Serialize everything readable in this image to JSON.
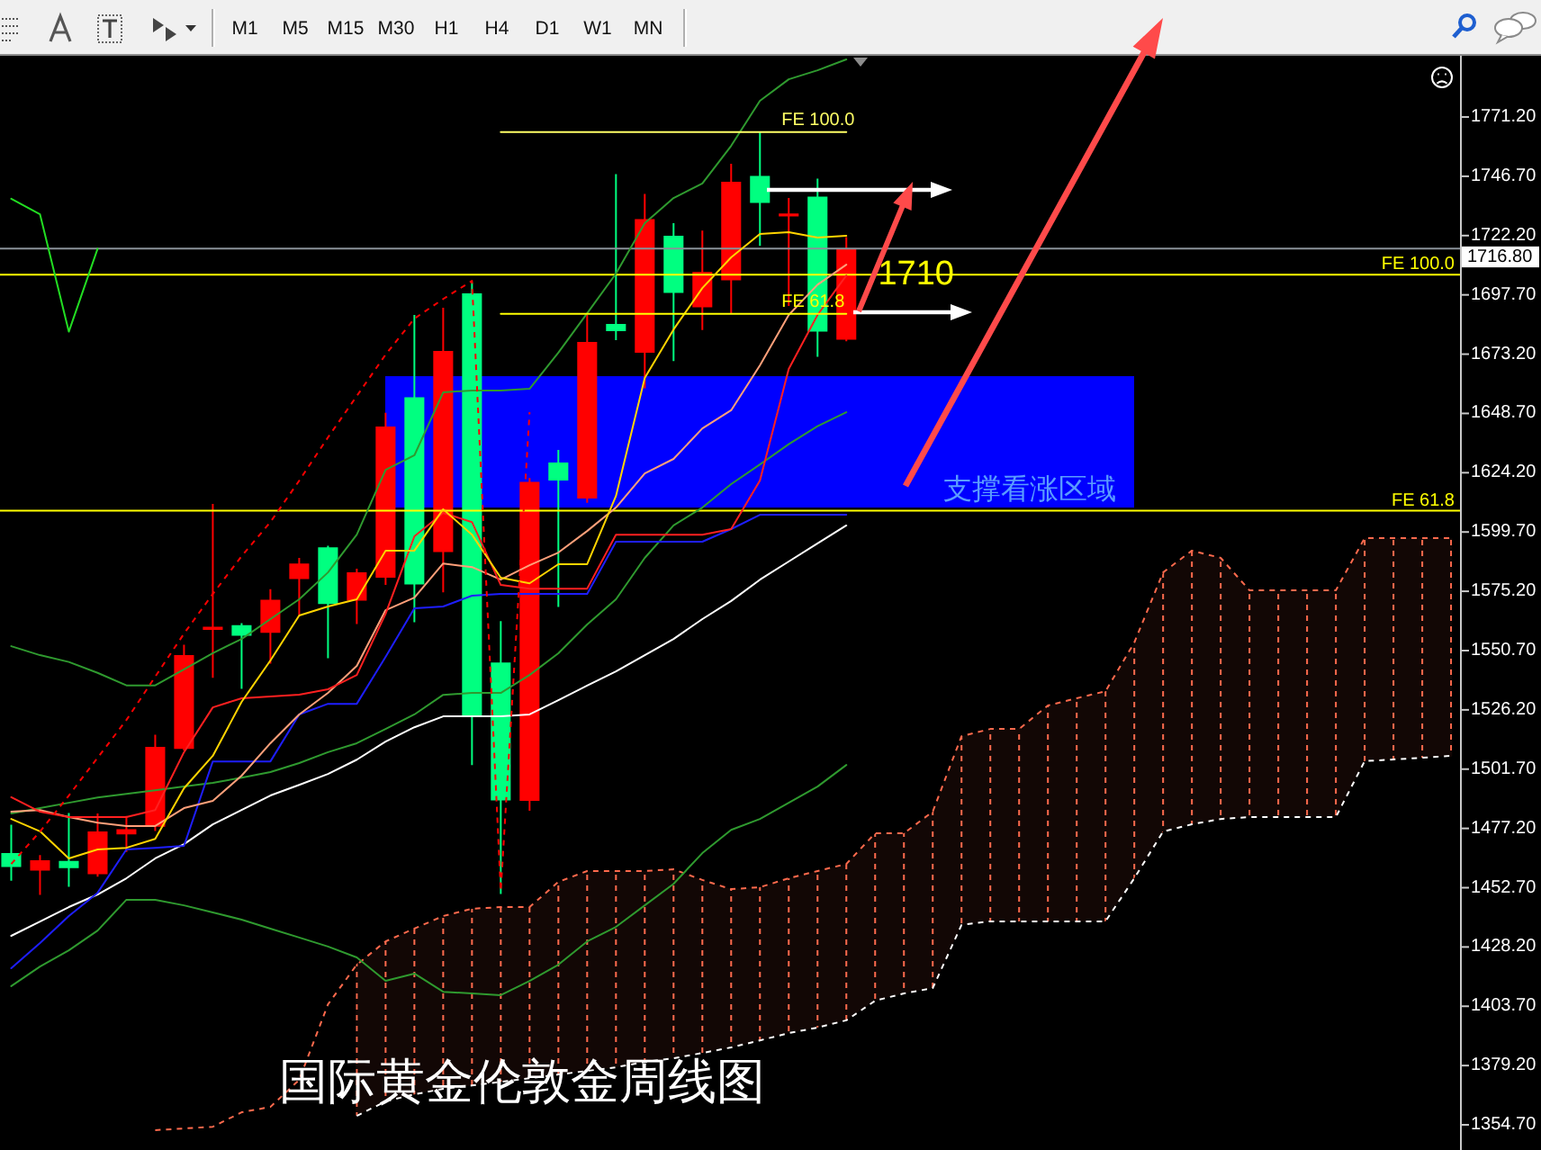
{
  "chart_data": {
    "type": "candlestick",
    "title": "国际黄金伦敦金周线图",
    "categories": [
      null,
      null,
      null,
      null,
      null,
      null,
      null,
      null,
      null,
      null,
      null,
      null,
      null,
      null,
      null,
      null,
      null,
      null,
      null,
      null,
      null,
      null,
      null,
      null,
      null,
      null,
      null,
      null,
      null,
      null,
      null,
      null,
      null,
      null,
      null,
      null,
      null,
      null,
      null,
      null,
      null,
      null,
      null,
      null,
      null,
      null,
      null,
      null,
      null,
      null,
      null
    ],
    "ohlc": [
      [
        1467.0,
        1478.7,
        1455.6,
        1461.3
      ],
      [
        1459.8,
        1466.2,
        1449.7,
        1464.0
      ],
      [
        1463.8,
        1483.6,
        1453.1,
        1460.8
      ],
      [
        1458.3,
        1483.4,
        1457.3,
        1475.9
      ],
      [
        1474.7,
        1482.4,
        1467.5,
        1476.9
      ],
      [
        1477.9,
        1515.9,
        1476.1,
        1510.9
      ],
      [
        1510.1,
        1553.1,
        1509.4,
        1548.8
      ],
      [
        1559.2,
        1611.3,
        1539.4,
        1560.5
      ],
      [
        1561.2,
        1562.0,
        1534.9,
        1556.8
      ],
      [
        1558.0,
        1576.1,
        1545.3,
        1571.7
      ],
      [
        1580.3,
        1589.0,
        1565.4,
        1586.7
      ],
      [
        1593.4,
        1594.0,
        1547.5,
        1569.9
      ],
      [
        1571.3,
        1584.5,
        1561.7,
        1583.0
      ],
      [
        1580.8,
        1649.0,
        1577.8,
        1643.3
      ],
      [
        1655.4,
        1689.4,
        1562.4,
        1578.0
      ],
      [
        1591.4,
        1692.4,
        1574.8,
        1674.5
      ],
      [
        1698.3,
        1702.8,
        1503.4,
        1523.3
      ],
      [
        1545.8,
        1562.9,
        1450.1,
        1488.8
      ],
      [
        1488.6,
        1622.0,
        1484.5,
        1620.4
      ],
      [
        1628.4,
        1633.6,
        1568.7,
        1621.0
      ],
      [
        1613.5,
        1689.4,
        1611.8,
        1678.2
      ],
      [
        1685.7,
        1747.6,
        1679.0,
        1682.7
      ],
      [
        1673.8,
        1739.4,
        1659.1,
        1729.0
      ],
      [
        1722.1,
        1727.3,
        1670.3,
        1698.5
      ],
      [
        1692.6,
        1724.3,
        1683.2,
        1707.2
      ],
      [
        1703.7,
        1751.9,
        1690.1,
        1744.4
      ],
      [
        1746.9,
        1765.0,
        1717.9,
        1735.7
      ],
      [
        1730.5,
        1737.7,
        1693.1,
        1731.0
      ],
      [
        1738.3,
        1745.7,
        1672.1,
        1682.5
      ],
      [
        1679.2,
        1721.6,
        1678.5,
        1716.8
      ],
      null,
      null,
      null,
      null,
      null,
      null,
      null,
      null,
      null,
      null,
      null,
      null,
      null,
      null,
      null,
      null,
      null,
      null,
      null,
      null,
      null
    ],
    "colors": [
      "#00ff80",
      "#ff0000",
      "#00ff80",
      "#ff0000",
      "#ff0000",
      "#ff0000",
      "#ff0000",
      "#ff0000",
      "#00ff80",
      "#ff0000",
      "#ff0000",
      "#00ff80",
      "#ff0000",
      "#ff0000",
      "#00ff80",
      "#ff0000",
      "#00ff80",
      "#00ff80",
      "#ff0000",
      "#00ff80",
      "#ff0000",
      "#00ff80",
      "#ff0000",
      "#00ff80",
      "#ff0000",
      "#ff0000",
      "#00ff80",
      "#ff0000",
      "#00ff80",
      "#ff0000",
      null,
      null,
      null,
      null,
      null,
      null,
      null,
      null,
      null,
      null,
      null,
      null,
      null,
      null,
      null,
      null,
      null,
      null,
      null,
      null,
      null
    ],
    "series": [
      {
        "type": "line",
        "color": "#ff6a4d",
        "line_style": "dashed",
        "values": [
          null,
          null,
          null,
          null,
          null,
          1352.5,
          1353.2,
          1353.9,
          1359.9,
          1362.1,
          1373.3,
          1404.5,
          1420.9,
          1430.5,
          1435.8,
          1441.0,
          1444.0,
          1444.7,
          1444.7,
          1455.1,
          1459.6,
          1459.6,
          1459.6,
          1460.3,
          1455.9,
          1452.1,
          1452.9,
          1456.6,
          1459.6,
          1462.5,
          1475.2,
          1475.2,
          1484.1,
          1515.3,
          1518.3,
          1518.3,
          1528.0,
          1531.0,
          1533.9,
          1554.0,
          1583.0,
          1592.0,
          1589.0,
          1575.6,
          1575.6,
          1575.6,
          1575.6,
          1597.2,
          1597.2,
          1597.2,
          1597.2
        ],
        "upper": [
          null,
          null,
          null,
          null,
          null,
          null,
          null,
          null,
          null,
          null,
          null,
          null,
          1420.9,
          1430.5,
          1435.8,
          1441.0,
          1444.0,
          1444.7,
          1444.7,
          1455.1,
          1459.6,
          1459.6,
          1459.6,
          1460.3,
          1455.9,
          1452.1,
          1452.9,
          1456.6,
          1459.6,
          1462.5,
          1475.2,
          1475.2,
          1484.1,
          1515.3,
          1518.3,
          1518.3,
          1528.0,
          1531.0,
          1533.9,
          1554.0,
          1583.0,
          1592.0,
          1589.0,
          1575.6,
          1575.6,
          1575.6,
          1575.6,
          1597.2,
          1597.2,
          1597.2,
          1597.2
        ],
        "lower": [
          null,
          null,
          null,
          null,
          null,
          null,
          null,
          null,
          null,
          null,
          null,
          null,
          1358.4,
          1364.4,
          1367.3,
          1369.6,
          1371.0,
          1372.5,
          1374.0,
          1375.5,
          1377.0,
          1378.5,
          1380.7,
          1382.2,
          1384.4,
          1386.7,
          1389.6,
          1392.6,
          1394.9,
          1397.9,
          1406.0,
          1409.0,
          1411.2,
          1437.3,
          1438.8,
          1438.8,
          1438.8,
          1438.8,
          1438.8,
          1456.6,
          1475.9,
          1478.9,
          1481.1,
          1481.9,
          1481.9,
          1481.9,
          1481.9,
          1505.0,
          1505.7,
          1506.4,
          1507.2
        ]
      },
      {
        "type": "line",
        "color": "#ffffff",
        "line_style": "dashed",
        "values": [
          null,
          null,
          null,
          null,
          null,
          null,
          null,
          null,
          null,
          null,
          null,
          null,
          1358.4,
          1364.4,
          1367.3,
          1369.6,
          1371.0,
          1372.5,
          1374.0,
          1375.5,
          1377.0,
          1378.5,
          1380.7,
          1382.2,
          1384.4,
          1386.7,
          1389.6,
          1392.6,
          1394.9,
          1397.9,
          1406.0,
          1409.0,
          1411.2,
          1437.3,
          1438.8,
          1438.8,
          1438.8,
          1438.8,
          1438.8,
          1456.6,
          1475.9,
          1478.9,
          1481.1,
          1481.9,
          1481.9,
          1481.9,
          1481.9,
          1505.0,
          1505.7,
          1506.4,
          1507.2
        ]
      },
      {
        "type": "line",
        "color": "#2f9a2f",
        "values": [
          1552.5,
          1548.8,
          1546.0,
          1541.5,
          1536.3,
          1536.3,
          1542.9,
          1549.6,
          1555.5,
          1563.7,
          1571.9,
          1583.0,
          1598.6,
          1625.4,
          1631.4,
          1657.4,
          1658.2,
          1658.2,
          1658.9,
          1673.8,
          1690.1,
          1706.5,
          1727.3,
          1737.7,
          1743.7,
          1759.3,
          1777.9,
          1786.8,
          1790.5,
          1795.0,
          null,
          null,
          null,
          null,
          null,
          null,
          null,
          null,
          null,
          null,
          null,
          null,
          null,
          null,
          null,
          null,
          null,
          null,
          null,
          null,
          null
        ]
      },
      {
        "type": "line",
        "color": "#2f9a2f",
        "values": [
          1483.4,
          1485.6,
          1487.8,
          1490.0,
          1491.5,
          1493.0,
          1494.5,
          1496.0,
          1498.2,
          1500.5,
          1504.2,
          1508.7,
          1512.4,
          1518.3,
          1524.3,
          1532.4,
          1533.2,
          1533.2,
          1540.6,
          1549.6,
          1561.5,
          1571.9,
          1589.0,
          1602.4,
          1609.8,
          1619.5,
          1627.6,
          1636.0,
          1643.4,
          1649.2,
          null,
          null,
          null,
          null,
          null,
          null,
          null,
          null,
          null,
          null,
          null,
          null,
          null,
          null,
          null,
          null,
          null,
          null,
          null,
          null,
          null
        ]
      },
      {
        "type": "line",
        "color": "#2f9a2f",
        "values": [
          1412.0,
          1420.1,
          1426.8,
          1435.0,
          1447.7,
          1447.7,
          1445.4,
          1442.5,
          1439.5,
          1435.8,
          1432.1,
          1428.4,
          1423.9,
          1414.2,
          1417.2,
          1409.7,
          1409.0,
          1408.3,
          1414.2,
          1420.9,
          1430.5,
          1436.5,
          1445.4,
          1454.3,
          1467.0,
          1476.6,
          1481.1,
          1487.8,
          1494.5,
          1503.4,
          null,
          null,
          null,
          null,
          null,
          null,
          null,
          null,
          null,
          null,
          null,
          null,
          null,
          null,
          null,
          null,
          null,
          null,
          null,
          null,
          null
        ]
      },
      {
        "type": "line",
        "color": "#ffffff",
        "values": [
          1432.8,
          1438.7,
          1444.7,
          1449.9,
          1456.6,
          1464.8,
          1470.7,
          1478.9,
          1484.8,
          1490.8,
          1495.2,
          1499.7,
          1505.6,
          1513.1,
          1519.0,
          1523.5,
          1523.5,
          1523.5,
          1524.3,
          1530.2,
          1536.2,
          1542.1,
          1548.8,
          1555.5,
          1563.7,
          1571.2,
          1580.0,
          1587.5,
          1595.0,
          1602.4,
          null,
          null,
          null,
          null,
          null,
          null,
          null,
          null,
          null,
          null,
          null,
          null,
          null,
          null,
          null,
          null,
          null,
          null,
          null,
          null,
          null
        ]
      },
      {
        "type": "line",
        "color": "#1e1eff",
        "values": [
          1419.4,
          1429.8,
          1441.0,
          1450.6,
          1468.5,
          1469.2,
          1470.0,
          1504.9,
          1504.9,
          1504.9,
          1524.3,
          1528.7,
          1528.7,
          1548.1,
          1568.2,
          1568.9,
          1573.4,
          1574.1,
          1574.1,
          1574.1,
          1574.1,
          1595.7,
          1595.7,
          1595.7,
          1595.7,
          1600.9,
          1606.8,
          1606.8,
          1606.8,
          1606.8,
          null,
          null,
          null,
          null,
          null,
          null,
          null,
          null,
          null,
          null,
          null,
          null,
          null,
          null,
          null,
          null,
          null,
          null,
          null,
          null,
          null
        ]
      },
      {
        "type": "line",
        "color": "#ffa07a",
        "values": [
          1484.1,
          1484.8,
          1481.9,
          1479.6,
          1478.2,
          1478.2,
          1485.6,
          1488.6,
          1499.0,
          1512.4,
          1524.3,
          1533.2,
          1544.4,
          1567.4,
          1572.6,
          1586.7,
          1585.2,
          1580.0,
          1586.0,
          1591.2,
          1600.1,
          1609.8,
          1623.9,
          1629.9,
          1642.5,
          1650.0,
          1668.6,
          1689.4,
          1701.9,
          1710.2,
          null,
          null,
          null,
          null,
          null,
          null,
          null,
          null,
          null,
          null,
          null,
          null,
          null,
          null,
          null,
          null,
          null,
          null,
          null,
          null,
          null
        ]
      },
      {
        "type": "line",
        "color": "#ff2020",
        "values": [
          1490.1,
          1484.1,
          1481.9,
          1481.9,
          1481.9,
          1484.8,
          1508.7,
          1527.2,
          1531.0,
          1531.7,
          1532.5,
          1534.7,
          1540.6,
          1565.9,
          1597.9,
          1607.6,
          1603.8,
          1577.8,
          1576.3,
          1576.3,
          1576.3,
          1598.6,
          1598.6,
          1598.6,
          1598.6,
          1600.9,
          1621.0,
          1667.1,
          1689.4,
          1705.7,
          null,
          null,
          null,
          null,
          null,
          null,
          null,
          null,
          null,
          null,
          null,
          null,
          null,
          null,
          null,
          null,
          null,
          null,
          null,
          null,
          null
        ]
      },
      {
        "type": "line",
        "color": "#ffd400",
        "values": [
          1481.1,
          1476.0,
          1464.8,
          1468.5,
          1469.2,
          1472.9,
          1493.8,
          1507.2,
          1529.5,
          1546.6,
          1565.2,
          1568.9,
          1571.9,
          1592.0,
          1592.0,
          1609.1,
          1598.6,
          1580.8,
          1578.5,
          1586.4,
          1586.4,
          1614.6,
          1663.4,
          1683.4,
          1700.5,
          1713.2,
          1722.9,
          1723.6,
          1721.4,
          1722.1,
          null,
          null,
          null,
          null,
          null,
          null,
          null,
          null,
          null,
          null,
          null,
          null,
          null,
          null,
          null,
          null,
          null,
          null,
          null,
          null,
          null
        ]
      },
      {
        "type": "line",
        "color": "#ff0000",
        "line_style": "dashed",
        "values": [
          1462.5,
          1475.9,
          1490.8,
          1506.4,
          1522.0,
          1539.9,
          1557.7,
          1574.1,
          1589.7,
          1603.8,
          1620.9,
          1638.8,
          1655.9,
          1673.0,
          1687.9,
          1696.0,
          1703.5,
          1451.4,
          1649.2,
          null,
          null,
          null,
          null,
          null,
          null,
          null,
          null,
          null,
          null,
          null,
          null,
          null,
          null,
          null,
          null,
          null,
          null,
          null,
          null,
          null,
          null,
          null,
          null,
          null,
          null,
          null,
          null,
          null,
          null,
          null,
          null
        ]
      },
      {
        "type": "line",
        "color": "#22dd22",
        "values": [
          1737.4,
          1731.0,
          1682.5,
          1716.8,
          null,
          null,
          null,
          null,
          null,
          null,
          null,
          null,
          null,
          null,
          null,
          null,
          null,
          null,
          null,
          null,
          null,
          null,
          null,
          null,
          null,
          null,
          null,
          null,
          null,
          null,
          null,
          null,
          null,
          null,
          null,
          null,
          null,
          null,
          null,
          null,
          null,
          null,
          null,
          null,
          null,
          null,
          null,
          null,
          null,
          null,
          null
        ]
      },
      {
        "type": "line",
        "name": "FE 100.0",
        "color": "#ffff66",
        "values": [
          null,
          null,
          null,
          null,
          null,
          null,
          null,
          null,
          null,
          null,
          null,
          null,
          null,
          null,
          null,
          null,
          null,
          1765.0,
          1765.0,
          1765.0,
          1765.0,
          1765.0,
          1765.0,
          1765.0,
          1765.0,
          1765.0,
          1765.0,
          1765.0,
          1765.0,
          1765.0,
          null,
          null,
          null,
          null,
          null,
          null,
          null,
          null,
          null,
          null,
          null,
          null,
          null,
          null,
          null,
          null,
          null,
          null,
          null,
          null,
          null
        ]
      },
      {
        "type": "line",
        "name": "FE 61.8",
        "color": "#ffff00",
        "values": [
          null,
          null,
          null,
          null,
          null,
          null,
          null,
          null,
          null,
          null,
          null,
          null,
          null,
          null,
          null,
          null,
          null,
          1689.9,
          1689.9,
          1689.9,
          1689.9,
          1689.9,
          1689.9,
          1689.9,
          1689.9,
          1689.9,
          1689.9,
          1689.9,
          1689.9,
          1689.9,
          null,
          null,
          null,
          null,
          null,
          null,
          null,
          null,
          null,
          null,
          null,
          null,
          null,
          null,
          null,
          null,
          null,
          null,
          null,
          null,
          null
        ]
      }
    ],
    "ylim": [
      1344.3,
      1796.5
    ],
    "yticks": [
      {
        "value": 1771.2,
        "label": "1771.20"
      },
      {
        "value": 1746.7,
        "label": "1746.70"
      },
      {
        "value": 1722.2,
        "label": "1722.20"
      },
      {
        "value": 1716.8,
        "label": "1716.80"
      },
      {
        "value": 1697.7,
        "label": "1697.70"
      },
      {
        "value": 1673.2,
        "label": "1673.20"
      },
      {
        "value": 1648.7,
        "label": "1648.70"
      },
      {
        "value": 1624.2,
        "label": "1624.20"
      },
      {
        "value": 1599.7,
        "label": "1599.70"
      },
      {
        "value": 1575.2,
        "label": "1575.20"
      },
      {
        "value": 1550.7,
        "label": "1550.70"
      },
      {
        "value": 1526.2,
        "label": "1526.20"
      },
      {
        "value": 1501.7,
        "label": "1501.70"
      },
      {
        "value": 1477.2,
        "label": "1477.20"
      },
      {
        "value": 1452.7,
        "label": "1452.70"
      },
      {
        "value": 1428.2,
        "label": "1428.20"
      },
      {
        "value": 1403.7,
        "label": "1403.70"
      },
      {
        "value": 1379.2,
        "label": "1379.20"
      },
      {
        "value": 1354.7,
        "label": "1354.70"
      }
    ],
    "tick_labels": "y",
    "ref_lines": [
      {
        "axis": "y",
        "value": 1716.8,
        "color": "#8a9299"
      },
      {
        "axis": "y",
        "value": 1706.0,
        "label": "FE 100.0",
        "color": "#ffff00"
      },
      {
        "axis": "y",
        "value": 1608.5,
        "label": "FE 61.8",
        "color": "#ffff00"
      }
    ],
    "bands": [
      {
        "axis": "y",
        "from": 1609.8,
        "to": 1664.1,
        "label": "支撑看涨区域",
        "color": "#0000ff"
      }
    ],
    "annotations": [
      "M1",
      "M5",
      "M15",
      "M30",
      "H1",
      "H4",
      "D1",
      "W1",
      "MN",
      {
        "text": "1710",
        "y": 1706.0
      }
    ]
  }
}
